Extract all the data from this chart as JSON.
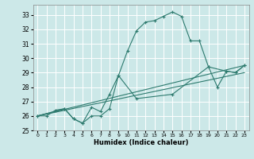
{
  "xlabel": "Humidex (Indice chaleur)",
  "bg_color": "#cce8e8",
  "grid_color": "#ffffff",
  "line_color": "#2d7a6e",
  "xlim": [
    -0.5,
    23.5
  ],
  "ylim": [
    25,
    33.7
  ],
  "yticks": [
    25,
    26,
    27,
    28,
    29,
    30,
    31,
    32,
    33
  ],
  "xticks": [
    0,
    1,
    2,
    3,
    4,
    5,
    6,
    7,
    8,
    9,
    10,
    11,
    12,
    13,
    14,
    15,
    16,
    17,
    18,
    19,
    20,
    21,
    22,
    23
  ],
  "series1": [
    [
      0,
      26.0
    ],
    [
      1,
      26.0
    ],
    [
      2,
      26.4
    ],
    [
      3,
      26.5
    ],
    [
      4,
      25.8
    ],
    [
      5,
      25.5
    ],
    [
      6,
      26.0
    ],
    [
      7,
      26.0
    ],
    [
      8,
      26.5
    ],
    [
      9,
      28.8
    ],
    [
      10,
      30.5
    ],
    [
      11,
      31.9
    ],
    [
      12,
      32.5
    ],
    [
      13,
      32.6
    ],
    [
      14,
      32.9
    ],
    [
      15,
      33.2
    ],
    [
      16,
      32.9
    ],
    [
      17,
      31.2
    ],
    [
      18,
      31.2
    ],
    [
      19,
      29.4
    ],
    [
      20,
      28.0
    ],
    [
      21,
      29.1
    ],
    [
      22,
      29.0
    ],
    [
      23,
      29.5
    ]
  ],
  "series2": [
    [
      0,
      26.0
    ],
    [
      3,
      26.5
    ],
    [
      4,
      25.8
    ],
    [
      5,
      25.5
    ],
    [
      6,
      26.6
    ],
    [
      7,
      26.3
    ],
    [
      8,
      27.5
    ],
    [
      9,
      28.8
    ],
    [
      11,
      27.2
    ],
    [
      15,
      27.5
    ],
    [
      19,
      29.4
    ],
    [
      21,
      29.1
    ],
    [
      22,
      29.0
    ],
    [
      23,
      29.5
    ]
  ],
  "series3": [
    [
      0,
      26.0
    ],
    [
      23,
      29.0
    ]
  ],
  "series4": [
    [
      0,
      26.0
    ],
    [
      23,
      29.5
    ]
  ]
}
